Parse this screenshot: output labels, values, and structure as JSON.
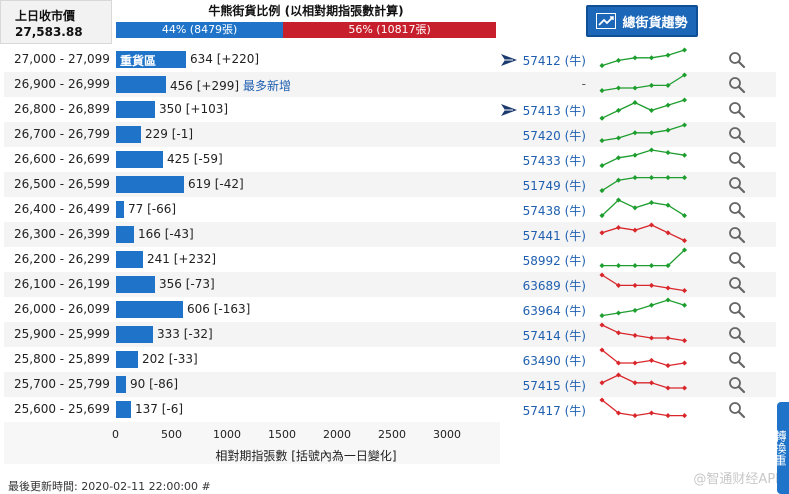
{
  "header": {
    "prev_close_label": "上日收市價",
    "prev_close_value": "27,583.88",
    "ratio_title": "牛熊街貨比例 (以相對期指張數計算)",
    "bull_text": "44% (8479張)",
    "bear_text": "56% (10817張)",
    "bull_pct": 44,
    "trend_button": "總街貨趨勢"
  },
  "rows": [
    {
      "range": "27,000 - 27,099",
      "qty": 634,
      "label": "634 [+220]",
      "tag": "重貨區",
      "warrant": "57412 (牛)",
      "icon": true,
      "trend": "up",
      "spark": [
        6,
        4,
        3,
        3,
        2,
        0
      ],
      "color": "green"
    },
    {
      "range": "26,900 - 26,999",
      "qty": 456,
      "label": "456 [+299]",
      "new": "最多新增",
      "warrant": "-",
      "trend": "up",
      "spark": [
        6,
        5,
        5,
        4,
        4,
        0
      ],
      "color": "green"
    },
    {
      "range": "26,800 - 26,899",
      "qty": 350,
      "label": "350 [+103]",
      "warrant": "57413 (牛)",
      "icon": true,
      "trend": "up",
      "spark": [
        7,
        4,
        1,
        4,
        2,
        0
      ],
      "color": "green"
    },
    {
      "range": "26,700 - 26,799",
      "qty": 229,
      "label": "229 [-1]",
      "warrant": "57420 (牛)",
      "trend": "up",
      "spark": [
        6,
        5,
        3,
        3,
        2,
        0
      ],
      "color": "green"
    },
    {
      "range": "26,600 - 26,699",
      "qty": 425,
      "label": "425 [-59]",
      "warrant": "57433 (牛)",
      "trend": "up",
      "spark": [
        6,
        3,
        2,
        0,
        1,
        2
      ],
      "color": "green"
    },
    {
      "range": "26,500 - 26,599",
      "qty": 619,
      "label": "619 [-42]",
      "warrant": "51749 (牛)",
      "trend": "up",
      "spark": [
        6,
        2,
        1,
        1,
        1,
        1
      ],
      "color": "green"
    },
    {
      "range": "26,400 - 26,499",
      "qty": 77,
      "label": "77 [-66]",
      "warrant": "57438 (牛)",
      "trend": "up",
      "spark": [
        6,
        0,
        3,
        1,
        2,
        6
      ],
      "color": "green"
    },
    {
      "range": "26,300 - 26,399",
      "qty": 166,
      "label": "166 [-43]",
      "warrant": "57441 (牛)",
      "trend": "down",
      "spark": [
        3,
        1,
        2,
        0,
        3,
        6
      ],
      "color": "red"
    },
    {
      "range": "26,200 - 26,299",
      "qty": 241,
      "label": "241 [+232]",
      "warrant": "58992 (牛)",
      "trend": "up",
      "spark": [
        6,
        6,
        6,
        6,
        6,
        0
      ],
      "color": "green"
    },
    {
      "range": "26,100 - 26,199",
      "qty": 356,
      "label": "356 [-73]",
      "warrant": "63689 (牛)",
      "trend": "down",
      "spark": [
        0,
        4,
        4,
        4,
        5,
        6
      ],
      "color": "red"
    },
    {
      "range": "26,000 - 26,099",
      "qty": 606,
      "label": "606 [-163]",
      "warrant": "63964 (牛)",
      "trend": "up",
      "spark": [
        6,
        5,
        4,
        2,
        0,
        2
      ],
      "color": "green"
    },
    {
      "range": "25,900 - 25,999",
      "qty": 333,
      "label": "333 [-32]",
      "warrant": "57414 (牛)",
      "trend": "down",
      "spark": [
        0,
        3,
        4,
        5,
        5,
        6
      ],
      "color": "red"
    },
    {
      "range": "25,800 - 25,899",
      "qty": 202,
      "label": "202 [-33]",
      "warrant": "63490 (牛)",
      "trend": "down",
      "spark": [
        0,
        5,
        5,
        4,
        6,
        5
      ],
      "color": "red"
    },
    {
      "range": "25,700 - 25,799",
      "qty": 90,
      "label": "90 [-86]",
      "warrant": "57415 (牛)",
      "trend": "down",
      "spark": [
        3,
        0,
        3,
        3,
        5,
        5
      ],
      "color": "red"
    },
    {
      "range": "25,600 - 25,699",
      "qty": 137,
      "label": "137 [-6]",
      "warrant": "57417 (牛)",
      "trend": "down",
      "spark": [
        0,
        5,
        6,
        5,
        6,
        6
      ],
      "color": "red"
    }
  ],
  "axis": {
    "ticks": [
      "0",
      "500",
      "1000",
      "1500",
      "2000",
      "2500",
      "3000"
    ],
    "tick_values": [
      0,
      500,
      1000,
      1500,
      2000,
      2500,
      3000
    ],
    "title": "相對期指張數 [括號內為一日變化]"
  },
  "footer": {
    "updated": "最後更新時間: 2020-02-11 22:00:00 #",
    "watermark": "@智通财经APP",
    "side_tab": "轉換重"
  },
  "colors": {
    "bull_blue": "#1f74c9",
    "bear_red": "#c7202c",
    "spark_green": "#1e9e2e",
    "spark_red": "#d9262b"
  }
}
